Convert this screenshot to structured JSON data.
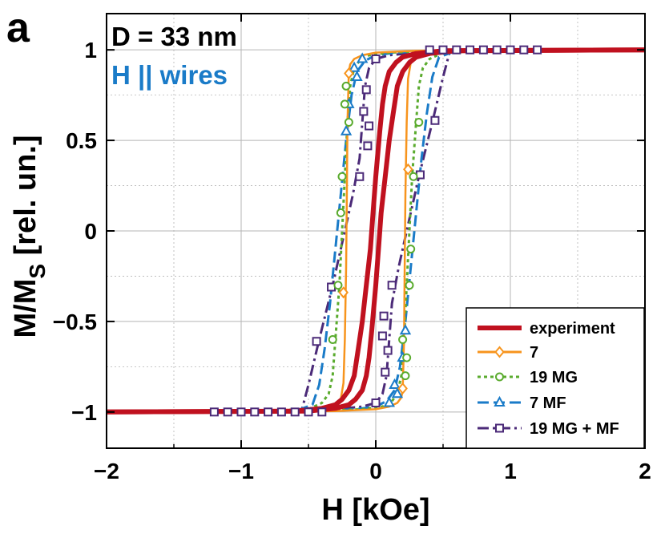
{
  "panel_label": "a",
  "annotations": {
    "diameter": "D = 33 nm",
    "field_direction": "H || wires",
    "field_direction_color": "#1a7bc8"
  },
  "chart_data": {
    "type": "line",
    "title": "",
    "xlabel": "H [kOe]",
    "ylabel_main": "M/M",
    "ylabel_sub": "S",
    "ylabel_tail": " [rel. un.]",
    "xlim": [
      -2,
      2
    ],
    "ylim": [
      -1.2,
      1.2
    ],
    "x_ticks": [
      -2,
      -1,
      0,
      1,
      2
    ],
    "x_tick_labels": [
      "−2",
      "−1",
      "0",
      "1",
      "2"
    ],
    "y_ticks": [
      -1,
      -0.5,
      0,
      0.5,
      1
    ],
    "y_tick_labels": [
      "−1",
      "−0.5",
      "0",
      "0.5",
      "1"
    ],
    "grid": true,
    "legend_position": "bottom-right",
    "series": [
      {
        "name": "experiment",
        "color": "#c0111f",
        "dash": "solid",
        "marker": "none",
        "stroke_width": 6,
        "branches": [
          [
            [
              -2,
              -1
            ],
            [
              -0.5,
              -0.995
            ],
            [
              -0.3,
              -0.98
            ],
            [
              -0.2,
              -0.96
            ],
            [
              -0.15,
              -0.93
            ],
            [
              -0.1,
              -0.88
            ],
            [
              -0.07,
              -0.8
            ],
            [
              -0.05,
              -0.7
            ],
            [
              -0.03,
              -0.55
            ],
            [
              0,
              -0.3
            ],
            [
              0.02,
              -0.1
            ],
            [
              0.04,
              0.1
            ],
            [
              0.07,
              0.3
            ],
            [
              0.1,
              0.5
            ],
            [
              0.13,
              0.65
            ],
            [
              0.16,
              0.8
            ],
            [
              0.2,
              0.88
            ],
            [
              0.25,
              0.93
            ],
            [
              0.3,
              0.96
            ],
            [
              0.4,
              0.98
            ],
            [
              0.6,
              0.995
            ],
            [
              2,
              1
            ]
          ],
          [
            [
              2,
              1
            ],
            [
              0.5,
              0.995
            ],
            [
              0.3,
              0.98
            ],
            [
              0.2,
              0.96
            ],
            [
              0.15,
              0.93
            ],
            [
              0.1,
              0.88
            ],
            [
              0.07,
              0.8
            ],
            [
              0.05,
              0.7
            ],
            [
              0.03,
              0.55
            ],
            [
              0,
              0.3
            ],
            [
              -0.02,
              0.1
            ],
            [
              -0.04,
              -0.1
            ],
            [
              -0.07,
              -0.3
            ],
            [
              -0.1,
              -0.5
            ],
            [
              -0.13,
              -0.65
            ],
            [
              -0.16,
              -0.8
            ],
            [
              -0.2,
              -0.88
            ],
            [
              -0.25,
              -0.93
            ],
            [
              -0.3,
              -0.96
            ],
            [
              -0.4,
              -0.98
            ],
            [
              -0.6,
              -0.995
            ],
            [
              -2,
              -1
            ]
          ]
        ],
        "marker_points": []
      },
      {
        "name": "7",
        "color": "#f7941d",
        "dash": "solid",
        "marker": "diamond",
        "stroke_width": 2.5,
        "branches": [
          [
            [
              -1.2,
              -1
            ],
            [
              -0.3,
              -0.995
            ],
            [
              0,
              -0.985
            ],
            [
              0.1,
              -0.97
            ],
            [
              0.16,
              -0.95
            ],
            [
              0.19,
              -0.92
            ],
            [
              0.2,
              -0.88
            ],
            [
              0.21,
              -0.6
            ],
            [
              0.215,
              -0.2
            ],
            [
              0.22,
              0.2
            ],
            [
              0.23,
              0.6
            ],
            [
              0.24,
              0.84
            ],
            [
              0.26,
              0.93
            ],
            [
              0.3,
              0.97
            ],
            [
              0.4,
              0.99
            ],
            [
              1.2,
              1
            ]
          ],
          [
            [
              1.2,
              1
            ],
            [
              0.3,
              0.995
            ],
            [
              0,
              0.985
            ],
            [
              -0.1,
              0.97
            ],
            [
              -0.16,
              0.95
            ],
            [
              -0.19,
              0.92
            ],
            [
              -0.2,
              0.88
            ],
            [
              -0.21,
              0.6
            ],
            [
              -0.215,
              0.2
            ],
            [
              -0.22,
              -0.2
            ],
            [
              -0.23,
              -0.6
            ],
            [
              -0.24,
              -0.84
            ],
            [
              -0.26,
              -0.93
            ],
            [
              -0.3,
              -0.97
            ],
            [
              -0.4,
              -0.99
            ],
            [
              -1.2,
              -1
            ]
          ]
        ],
        "marker_points": [
          [
            0.2,
            -0.87
          ],
          [
            -0.2,
            0.87
          ],
          [
            0.24,
            0.34
          ],
          [
            -0.24,
            -0.34
          ]
        ]
      },
      {
        "name": "19 MG",
        "color": "#5aab2e",
        "dash": "4,4",
        "marker": "circle",
        "stroke_width": 3,
        "branches": [
          [
            [
              -1.2,
              -1
            ],
            [
              -0.4,
              -0.995
            ],
            [
              -0.1,
              -0.985
            ],
            [
              0.05,
              -0.97
            ],
            [
              0.12,
              -0.94
            ],
            [
              0.16,
              -0.9
            ],
            [
              0.19,
              -0.8
            ],
            [
              0.21,
              -0.6
            ],
            [
              0.23,
              -0.3
            ],
            [
              0.25,
              0.0
            ],
            [
              0.27,
              0.3
            ],
            [
              0.3,
              0.6
            ],
            [
              0.32,
              0.8
            ],
            [
              0.35,
              0.9
            ],
            [
              0.4,
              0.95
            ],
            [
              0.5,
              0.985
            ],
            [
              1.2,
              1
            ]
          ],
          [
            [
              1.2,
              1
            ],
            [
              0.4,
              0.995
            ],
            [
              0.1,
              0.985
            ],
            [
              -0.05,
              0.97
            ],
            [
              -0.12,
              0.94
            ],
            [
              -0.16,
              0.9
            ],
            [
              -0.19,
              0.8
            ],
            [
              -0.21,
              0.6
            ],
            [
              -0.23,
              0.3
            ],
            [
              -0.25,
              0.0
            ],
            [
              -0.27,
              -0.3
            ],
            [
              -0.3,
              -0.6
            ],
            [
              -0.32,
              -0.8
            ],
            [
              -0.35,
              -0.9
            ],
            [
              -0.4,
              -0.95
            ],
            [
              -0.5,
              -0.985
            ],
            [
              -1.2,
              -1
            ]
          ]
        ],
        "marker_points": [
          [
            -0.22,
            0.8
          ],
          [
            -0.23,
            0.7
          ],
          [
            -0.2,
            0.6
          ],
          [
            -0.25,
            0.3
          ],
          [
            -0.26,
            0.1
          ],
          [
            0.22,
            -0.8
          ],
          [
            0.23,
            -0.7
          ],
          [
            0.2,
            -0.6
          ],
          [
            0.25,
            -0.3
          ],
          [
            0.26,
            -0.1
          ],
          [
            0.28,
            0.3
          ],
          [
            0.32,
            0.6
          ],
          [
            -0.28,
            -0.3
          ],
          [
            -0.32,
            -0.6
          ]
        ]
      },
      {
        "name": "7 MF",
        "color": "#1a7bc8",
        "dash": "14,6",
        "marker": "triangle",
        "stroke_width": 3,
        "branches": [
          [
            [
              -1.2,
              -1
            ],
            [
              -0.4,
              -0.995
            ],
            [
              -0.15,
              -0.985
            ],
            [
              0,
              -0.97
            ],
            [
              0.08,
              -0.94
            ],
            [
              0.14,
              -0.88
            ],
            [
              0.18,
              -0.75
            ],
            [
              0.22,
              -0.5
            ],
            [
              0.26,
              -0.2
            ],
            [
              0.3,
              0.1
            ],
            [
              0.34,
              0.4
            ],
            [
              0.38,
              0.65
            ],
            [
              0.42,
              0.85
            ],
            [
              0.47,
              0.96
            ],
            [
              0.6,
              0.995
            ],
            [
              1.2,
              1
            ]
          ],
          [
            [
              1.2,
              1
            ],
            [
              0.4,
              0.995
            ],
            [
              0.15,
              0.985
            ],
            [
              0,
              0.97
            ],
            [
              -0.08,
              0.94
            ],
            [
              -0.14,
              0.88
            ],
            [
              -0.18,
              0.75
            ],
            [
              -0.22,
              0.5
            ],
            [
              -0.26,
              0.2
            ],
            [
              -0.3,
              -0.1
            ],
            [
              -0.34,
              -0.4
            ],
            [
              -0.38,
              -0.65
            ],
            [
              -0.42,
              -0.85
            ],
            [
              -0.47,
              -0.96
            ],
            [
              -0.6,
              -0.995
            ],
            [
              -1.2,
              -1
            ]
          ]
        ],
        "marker_points": [
          [
            -0.1,
            0.95
          ],
          [
            -0.16,
            0.9
          ],
          [
            -0.2,
            0.7
          ],
          [
            -0.22,
            0.55
          ],
          [
            0.1,
            -0.95
          ],
          [
            0.16,
            -0.9
          ],
          [
            0.2,
            -0.7
          ],
          [
            0.22,
            -0.55
          ],
          [
            0.14,
            -0.85
          ],
          [
            -0.14,
            0.85
          ]
        ]
      },
      {
        "name": "19 MG + MF",
        "color": "#4b2a78",
        "dash": "14,5,3,5",
        "marker": "square",
        "stroke_width": 3,
        "branches": [
          [
            [
              -1.2,
              -1
            ],
            [
              -0.6,
              -0.995
            ],
            [
              -0.3,
              -0.985
            ],
            [
              -0.1,
              -0.97
            ],
            [
              0,
              -0.95
            ],
            [
              0.05,
              -0.9
            ],
            [
              0.08,
              -0.8
            ],
            [
              0.1,
              -0.6
            ],
            [
              0.12,
              -0.4
            ],
            [
              0.17,
              -0.2
            ],
            [
              0.23,
              0.0
            ],
            [
              0.32,
              0.3
            ],
            [
              0.42,
              0.6
            ],
            [
              0.5,
              0.85
            ],
            [
              0.55,
              0.99
            ],
            [
              0.6,
              1
            ],
            [
              1.2,
              1
            ]
          ],
          [
            [
              1.2,
              1
            ],
            [
              0.6,
              0.995
            ],
            [
              0.3,
              0.985
            ],
            [
              0.1,
              0.97
            ],
            [
              0,
              0.95
            ],
            [
              -0.05,
              0.9
            ],
            [
              -0.08,
              0.8
            ],
            [
              -0.1,
              0.6
            ],
            [
              -0.12,
              0.4
            ],
            [
              -0.17,
              0.2
            ],
            [
              -0.23,
              0.0
            ],
            [
              -0.32,
              -0.3
            ],
            [
              -0.42,
              -0.6
            ],
            [
              -0.5,
              -0.85
            ],
            [
              -0.55,
              -0.99
            ],
            [
              -0.6,
              -1
            ],
            [
              -1.2,
              -1
            ]
          ]
        ],
        "marker_points": [
          [
            -0.05,
            0.58
          ],
          [
            -0.06,
            0.47
          ],
          [
            0.05,
            -0.58
          ],
          [
            0.06,
            -0.47
          ],
          [
            0.12,
            -0.3
          ],
          [
            -0.12,
            0.3
          ],
          [
            0.44,
            0.61
          ],
          [
            0.33,
            0.31
          ],
          [
            -0.44,
            -0.61
          ],
          [
            -0.33,
            -0.31
          ],
          [
            0,
            -0.95
          ],
          [
            0,
            0.95
          ],
          [
            0.07,
            -0.78
          ],
          [
            -0.07,
            0.78
          ],
          [
            0.09,
            -0.66
          ],
          [
            -0.09,
            0.66
          ]
        ]
      }
    ],
    "shared_markers_x": [
      -1.2,
      -1.1,
      -1.0,
      -0.9,
      -0.8,
      -0.7,
      -0.6,
      -0.5,
      -0.4,
      0.4,
      0.5,
      0.6,
      0.7,
      0.8,
      0.9,
      1.0,
      1.1,
      1.2
    ]
  }
}
